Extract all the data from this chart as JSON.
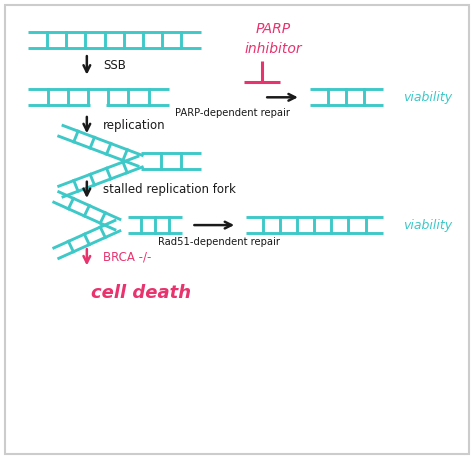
{
  "bg_color": "#ffffff",
  "dna_color": "#3ec8c8",
  "black_color": "#1a1a1a",
  "pink_color": "#e8336e",
  "viability_color": "#3ec8c8",
  "border_color": "#cccccc",
  "labels": {
    "parp_inhibitor_line1": "PARP",
    "parp_inhibitor_line2": "inhibitor",
    "ssb": "SSB",
    "parp_repair": "PARP-dependent repair",
    "replication": "replication",
    "stalled_fork": "stalled replication fork",
    "rad51_repair": "Rad51-dependent repair",
    "brca": "BRCA -/-",
    "cell_death": "cell death",
    "viability": "viability"
  },
  "figsize": [
    4.74,
    4.59
  ],
  "dpi": 100
}
